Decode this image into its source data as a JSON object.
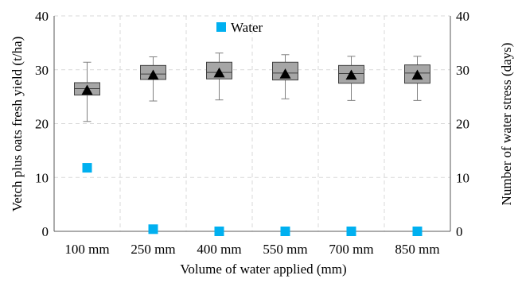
{
  "chart_data": {
    "type": "box",
    "title": "",
    "xlabel": "Volume of water applied (mm)",
    "ylabel_left": "Vetch plus oats fresh yield (t/ha)",
    "ylabel_right": "Number of water stress (days)",
    "ylim_left": [
      0,
      40
    ],
    "ylim_right": [
      0,
      40
    ],
    "yticks_left": [
      "0",
      "10",
      "20",
      "30",
      "40"
    ],
    "yticks_right": [
      "0",
      "10",
      "20",
      "30",
      "40"
    ],
    "grid": true,
    "legend_placement": "top-center",
    "categories": [
      "100 mm",
      "250 mm",
      "400 mm",
      "550 mm",
      "700 mm",
      "850 mm"
    ],
    "yield_boxes": [
      {
        "min": 20.4,
        "q1": 25.3,
        "median": 26.5,
        "q3": 27.6,
        "max": 31.4,
        "mean": 26.2
      },
      {
        "min": 24.2,
        "q1": 28.2,
        "median": 29.2,
        "q3": 30.8,
        "max": 32.4,
        "mean": 29.0
      },
      {
        "min": 24.4,
        "q1": 28.3,
        "median": 29.5,
        "q3": 31.4,
        "max": 33.1,
        "mean": 29.4
      },
      {
        "min": 24.6,
        "q1": 28.1,
        "median": 29.4,
        "q3": 31.4,
        "max": 32.8,
        "mean": 29.2
      },
      {
        "min": 24.3,
        "q1": 27.5,
        "median": 29.3,
        "q3": 30.8,
        "max": 32.5,
        "mean": 29.0
      },
      {
        "min": 24.3,
        "q1": 27.5,
        "median": 29.4,
        "q3": 30.9,
        "max": 32.5,
        "mean": 29.0
      }
    ],
    "series": [
      {
        "name": "Water",
        "axis": "right",
        "values": [
          11.8,
          0.4,
          0.0,
          0.0,
          0.0,
          0.0
        ]
      }
    ],
    "colors": {
      "box_fill": "#a6a6a6",
      "box_stroke": "#404040",
      "whisker": "#7f7f7f",
      "mean_marker": "#000000",
      "water_marker": "#00b0f0",
      "grid": "#d9d9d9"
    }
  }
}
